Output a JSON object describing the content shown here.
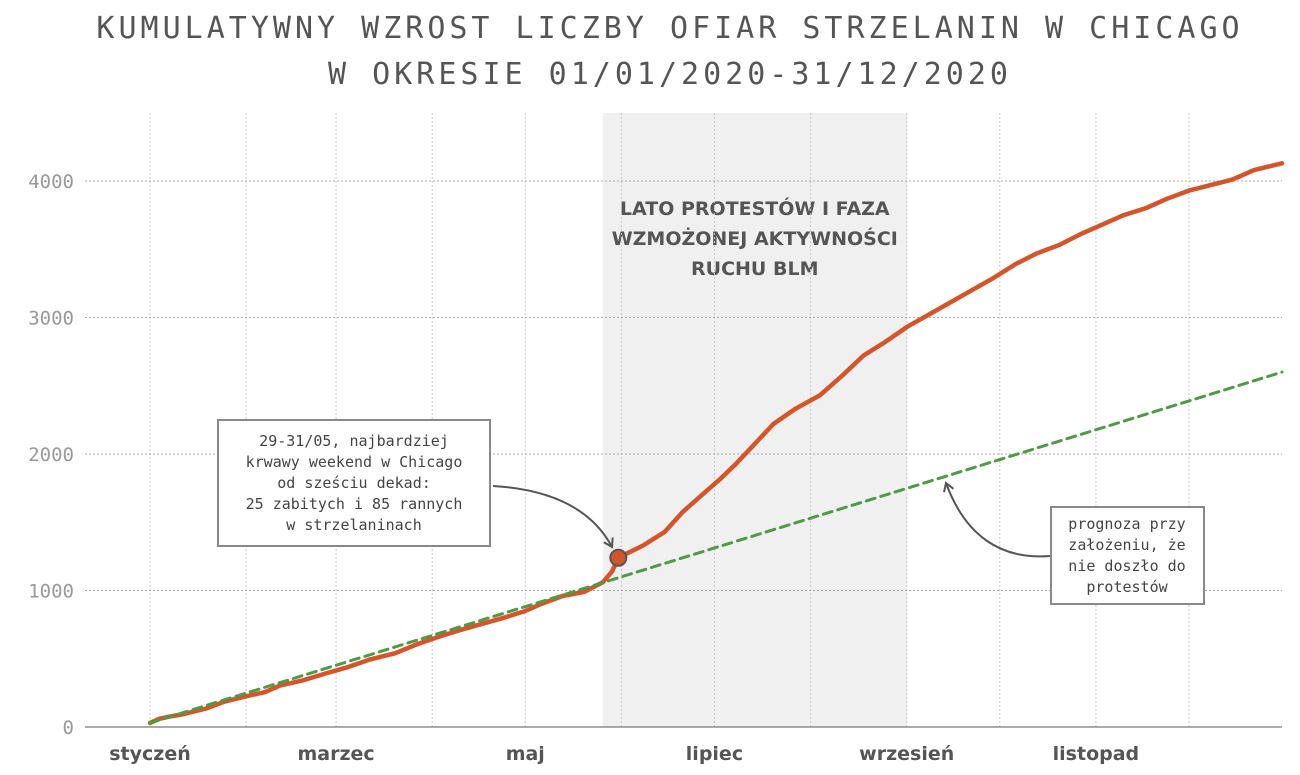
{
  "chart_data": {
    "type": "line",
    "title": [
      "KUMULATYWNY WZROST LICZBY OFIAR STRZELANIN W CHICAGO",
      "W OKRESIE 01/01/2020-31/12/2020"
    ],
    "xlabel": "",
    "ylabel": "",
    "ylim": [
      0,
      4500
    ],
    "xlim": [
      "2020-01-01",
      "2020-12-31"
    ],
    "yticks": [
      "0",
      "1000",
      "2000",
      "3000",
      "4000"
    ],
    "xticks": [
      {
        "date": "2020-01-01",
        "label": "styczeń"
      },
      {
        "date": "2020-03-01",
        "label": "marzec"
      },
      {
        "date": "2020-05-01",
        "label": "maj"
      },
      {
        "date": "2020-07-01",
        "label": "lipiec"
      },
      {
        "date": "2020-09-01",
        "label": "wrzesień"
      },
      {
        "date": "2020-11-01",
        "label": "listopad"
      }
    ],
    "grid": {
      "vertical_dates": [
        "2020-01-01",
        "2020-02-01",
        "2020-03-01",
        "2020-04-01",
        "2020-05-01",
        "2020-06-01",
        "2020-07-01",
        "2020-08-01",
        "2020-09-01",
        "2020-10-01",
        "2020-11-01",
        "2020-12-01"
      ],
      "horizontal": true
    },
    "series": [
      {
        "color": "#d4552a",
        "style": "solid",
        "x": [
          "2020-01-01",
          "2020-01-04",
          "2020-01-07",
          "2020-01-12",
          "2020-01-19",
          "2020-01-25",
          "2020-02-01",
          "2020-02-07",
          "2020-02-12",
          "2020-02-19",
          "2020-02-27",
          "2020-03-05",
          "2020-03-12",
          "2020-03-20",
          "2020-03-27",
          "2020-04-03",
          "2020-04-10",
          "2020-04-17",
          "2020-04-24",
          "2020-05-01",
          "2020-05-06",
          "2020-05-13",
          "2020-05-20",
          "2020-05-26",
          "2020-05-29",
          "2020-05-31",
          "2020-06-08",
          "2020-06-15",
          "2020-06-21",
          "2020-06-28",
          "2020-07-03",
          "2020-07-08",
          "2020-07-13",
          "2020-07-20",
          "2020-07-27",
          "2020-08-04",
          "2020-08-11",
          "2020-08-18",
          "2020-08-25",
          "2020-09-01",
          "2020-09-08",
          "2020-09-15",
          "2020-09-22",
          "2020-09-29",
          "2020-10-06",
          "2020-10-13",
          "2020-10-20",
          "2020-10-27",
          "2020-11-03",
          "2020-11-10",
          "2020-11-17",
          "2020-11-24",
          "2020-12-01",
          "2020-12-08",
          "2020-12-15",
          "2020-12-22",
          "2020-12-31"
        ],
        "y": [
          30,
          60,
          75,
          95,
          135,
          185,
          225,
          255,
          305,
          340,
          395,
          440,
          495,
          540,
          605,
          660,
          710,
          755,
          800,
          850,
          900,
          960,
          990,
          1060,
          1140,
          1240,
          1330,
          1430,
          1580,
          1720,
          1820,
          1930,
          2050,
          2220,
          2330,
          2430,
          2570,
          2720,
          2820,
          2930,
          3020,
          3110,
          3200,
          3290,
          3390,
          3470,
          3530,
          3610,
          3680,
          3750,
          3800,
          3870,
          3930,
          3970,
          4010,
          4080,
          4130
        ]
      },
      {
        "name": "prognoza przy założeniu, że nie doszło do protestów",
        "color": "#4e9a45",
        "style": "dashed",
        "x": [
          "2020-01-01",
          "2020-12-31"
        ],
        "y": [
          30,
          2600
        ]
      }
    ],
    "shaded_region": {
      "start": "2020-05-26",
      "end": "2020-09-01",
      "label": [
        "LATO PROTESTÓW I FAZA",
        "WZMOŻONEJ AKTYWNOŚCI",
        "RUCHU BLM"
      ]
    },
    "annotations": [
      {
        "id": "weekend",
        "point": {
          "x": "2020-05-31",
          "y": 1240
        },
        "lines": [
          "29-31/05, najbardziej",
          "krwawy weekend w Chicago",
          "od sześciu dekad:",
          "25 zabitych i 85 rannych",
          "w strzelaninach"
        ]
      },
      {
        "id": "forecast",
        "target": {
          "x": "2020-09-13",
          "y": 1800
        },
        "lines": [
          "prognoza przy",
          "założeniu, że",
          "nie doszło do",
          "protestów"
        ]
      }
    ]
  }
}
